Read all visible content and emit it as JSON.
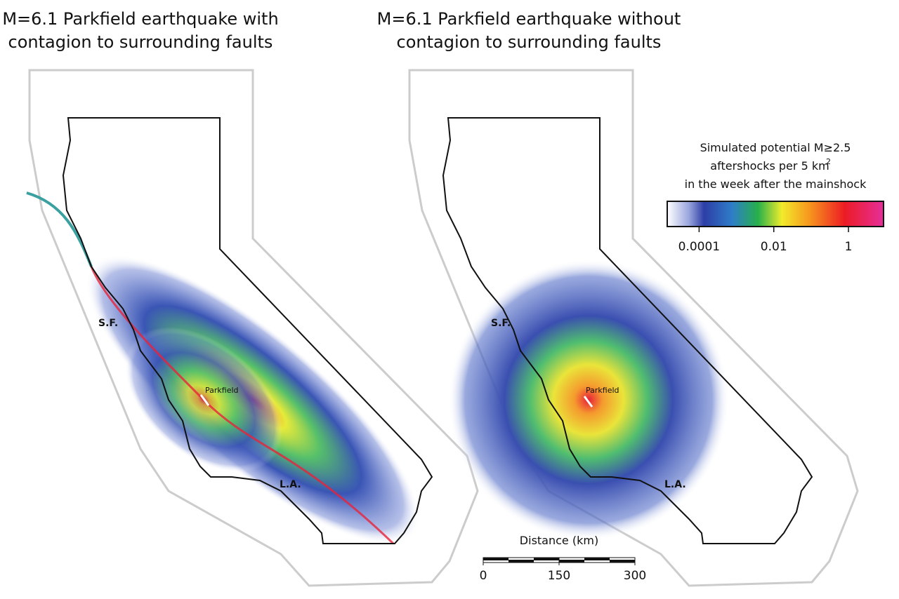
{
  "panels": [
    {
      "title_lines": [
        "M=6.1 Parkfield earthquake with",
        "contagion to surrounding faults"
      ],
      "labels": {
        "sf": "S.F.",
        "la": "L.A.",
        "parkfield": "Parkfield"
      }
    },
    {
      "title_lines": [
        "M=6.1 Parkfield earthquake without",
        "contagion to surrounding faults"
      ],
      "labels": {
        "sf": "S.F.",
        "la": "L.A.",
        "parkfield": "Parkfield"
      }
    }
  ],
  "legend": {
    "title_lines": [
      "Simulated potential M≥2.5",
      "aftershocks per 5 km",
      "in the week after the mainshock"
    ],
    "superscript": "2",
    "scale": "log",
    "range": [
      1.4e-05,
      8.7
    ],
    "ticks": [
      0.0001,
      0.01,
      1
    ]
  },
  "scale_bar": {
    "title": "Distance (km)",
    "xlim": [
      0,
      300
    ],
    "ticks": [
      0,
      150,
      300
    ]
  }
}
